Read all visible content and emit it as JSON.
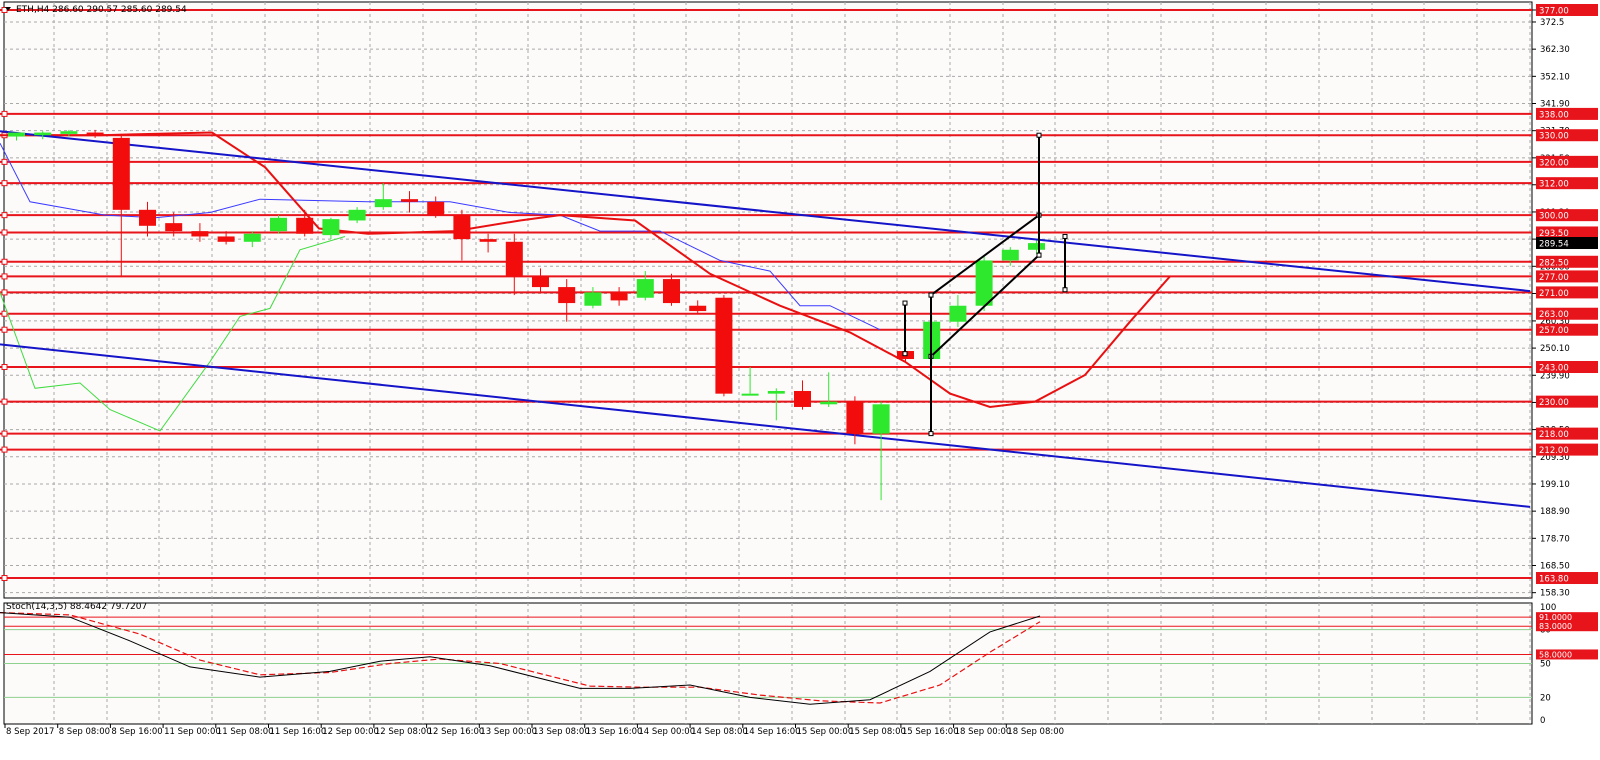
{
  "chart_data": {
    "type": "candlestick",
    "symbol_header": "ETH,H4  286.60 290.57 285.60 289.54",
    "last_price_label": "289.54",
    "colors": {
      "background": "#fdfafa",
      "grid": "#a9a9a9",
      "bull": "#2ee82e",
      "bear": "#f20c0c",
      "level": "#e8141b",
      "trend": "#1414c8",
      "channel": "#000000"
    },
    "price_axis_ticks": [
      "377.0",
      "372.5",
      "362.30",
      "352.10",
      "341.90",
      "331.70",
      "321.50",
      "311.40",
      "301.20",
      "291.00",
      "280.80",
      "270.60",
      "260.30",
      "250.10",
      "239.90",
      "229.70",
      "219.50",
      "209.30",
      "199.10",
      "188.90",
      "178.70",
      "168.50",
      "158.30"
    ],
    "ylim": [
      156.3,
      380.0
    ],
    "time_labels": [
      "8 Sep 2017",
      "8 Sep 08:00",
      "8 Sep 16:00",
      "11 Sep 00:00",
      "11 Sep 08:00",
      "11 Sep 16:00",
      "12 Sep 00:00",
      "12 Sep 08:00",
      "12 Sep 16:00",
      "13 Sep 00:00",
      "13 Sep 08:00",
      "13 Sep 16:00",
      "14 Sep 00:00",
      "14 Sep 08:00",
      "14 Sep 16:00",
      "15 Sep 00:00",
      "15 Sep 08:00",
      "15 Sep 16:00",
      "18 Sep 00:00",
      "18 Sep 08:00"
    ],
    "levels": [
      "377.00",
      "338.00",
      "330.00",
      "320.00",
      "312.00",
      "300.00",
      "293.50",
      "282.50",
      "277.00",
      "271.00",
      "263.00",
      "257.00",
      "243.00",
      "230.00",
      "218.00",
      "212.00",
      "163.80"
    ],
    "candles": [
      {
        "o": 329.5,
        "h": 331.0,
        "l": 328.0,
        "c": 331.0
      },
      {
        "o": 330.0,
        "h": 331.5,
        "l": 328.5,
        "c": 331.0
      },
      {
        "o": 330.5,
        "h": 332.0,
        "l": 329.5,
        "c": 331.5
      },
      {
        "o": 331.0,
        "h": 332.0,
        "l": 329.0,
        "c": 330.0
      },
      {
        "o": 329.0,
        "h": 330.5,
        "l": 277.0,
        "c": 302.0
      },
      {
        "o": 302.0,
        "h": 305.0,
        "l": 292.0,
        "c": 296.0
      },
      {
        "o": 297.0,
        "h": 301.0,
        "l": 292.0,
        "c": 294.0
      },
      {
        "o": 294.0,
        "h": 297.0,
        "l": 290.0,
        "c": 292.0
      },
      {
        "o": 292.0,
        "h": 294.0,
        "l": 289.0,
        "c": 290.0
      },
      {
        "o": 290.0,
        "h": 294.0,
        "l": 288.0,
        "c": 293.0
      },
      {
        "o": 294.0,
        "h": 300.0,
        "l": 293.0,
        "c": 299.0
      },
      {
        "o": 299.0,
        "h": 302.0,
        "l": 292.0,
        "c": 293.0
      },
      {
        "o": 292.5,
        "h": 299.0,
        "l": 291.0,
        "c": 298.5
      },
      {
        "o": 298.0,
        "h": 303.0,
        "l": 297.0,
        "c": 302.0
      },
      {
        "o": 303.0,
        "h": 312.0,
        "l": 302.0,
        "c": 306.0
      },
      {
        "o": 306.0,
        "h": 309.0,
        "l": 301.0,
        "c": 305.0
      },
      {
        "o": 305.0,
        "h": 307.0,
        "l": 299.0,
        "c": 300.0
      },
      {
        "o": 300.0,
        "h": 302.0,
        "l": 283.0,
        "c": 291.0
      },
      {
        "o": 291.0,
        "h": 293.0,
        "l": 286.0,
        "c": 290.0
      },
      {
        "o": 290.0,
        "h": 293.0,
        "l": 270.0,
        "c": 277.0
      },
      {
        "o": 277.0,
        "h": 280.0,
        "l": 271.0,
        "c": 273.0
      },
      {
        "o": 273.0,
        "h": 276.0,
        "l": 260.0,
        "c": 267.0
      },
      {
        "o": 266.0,
        "h": 273.0,
        "l": 265.0,
        "c": 271.0
      },
      {
        "o": 271.0,
        "h": 273.0,
        "l": 266.0,
        "c": 268.0
      },
      {
        "o": 269.0,
        "h": 279.0,
        "l": 268.0,
        "c": 276.0
      },
      {
        "o": 276.0,
        "h": 278.0,
        "l": 266.0,
        "c": 267.0
      },
      {
        "o": 266.0,
        "h": 268.0,
        "l": 263.0,
        "c": 264.0
      },
      {
        "o": 269.0,
        "h": 270.0,
        "l": 232.0,
        "c": 233.0
      },
      {
        "o": 233.0,
        "h": 243.0,
        "l": 233.0,
        "c": 233.0
      },
      {
        "o": 233.0,
        "h": 235.0,
        "l": 223.0,
        "c": 234.0
      },
      {
        "o": 234.0,
        "h": 238.0,
        "l": 227.0,
        "c": 228.0
      },
      {
        "o": 229.0,
        "h": 241.0,
        "l": 228.0,
        "c": 230.0
      },
      {
        "o": 230.0,
        "h": 232.0,
        "l": 214.0,
        "c": 218.0
      },
      {
        "o": 218.0,
        "h": 230.0,
        "l": 193.0,
        "c": 229.0
      },
      {
        "o": 249.0,
        "h": 264.0,
        "l": 245.0,
        "c": 246.0
      },
      {
        "o": 246.0,
        "h": 262.0,
        "l": 244.0,
        "c": 260.0
      },
      {
        "o": 260.0,
        "h": 270.0,
        "l": 258.0,
        "c": 266.0
      },
      {
        "o": 266.0,
        "h": 285.0,
        "l": 264.0,
        "c": 283.0
      },
      {
        "o": 283.0,
        "h": 288.0,
        "l": 281.0,
        "c": 287.0
      },
      {
        "o": 287.0,
        "h": 290.5,
        "l": 285.5,
        "c": 289.5
      }
    ],
    "trendlines": {
      "upper": [
        {
          "x": 0,
          "y": 331.5
        },
        {
          "x": 1530,
          "y": 271.5
        }
      ],
      "lower": [
        {
          "x": 0,
          "y": 251.5
        },
        {
          "x": 1530,
          "y": 190.5
        }
      ]
    },
    "ma_red": [
      {
        "x": 0,
        "y": 330
      },
      {
        "x": 100,
        "y": 330
      },
      {
        "x": 212,
        "y": 331
      },
      {
        "x": 265,
        "y": 318
      },
      {
        "x": 319,
        "y": 295
      },
      {
        "x": 368,
        "y": 293
      },
      {
        "x": 455,
        "y": 294
      },
      {
        "x": 520,
        "y": 298
      },
      {
        "x": 560,
        "y": 300
      },
      {
        "x": 635,
        "y": 298
      },
      {
        "x": 710,
        "y": 278
      },
      {
        "x": 780,
        "y": 266
      },
      {
        "x": 850,
        "y": 256
      },
      {
        "x": 905,
        "y": 245
      },
      {
        "x": 950,
        "y": 233
      },
      {
        "x": 990,
        "y": 228
      },
      {
        "x": 1035,
        "y": 230
      },
      {
        "x": 1085,
        "y": 240
      },
      {
        "x": 1130,
        "y": 260
      },
      {
        "x": 1170,
        "y": 277
      }
    ],
    "ma_blue": [
      {
        "x": 0,
        "y": 327
      },
      {
        "x": 30,
        "y": 305
      },
      {
        "x": 105,
        "y": 300
      },
      {
        "x": 155,
        "y": 299
      },
      {
        "x": 210,
        "y": 301
      },
      {
        "x": 260,
        "y": 306
      },
      {
        "x": 368,
        "y": 305
      },
      {
        "x": 450,
        "y": 305
      },
      {
        "x": 510,
        "y": 301
      },
      {
        "x": 560,
        "y": 300
      },
      {
        "x": 600,
        "y": 294
      },
      {
        "x": 660,
        "y": 294
      },
      {
        "x": 720,
        "y": 283
      },
      {
        "x": 770,
        "y": 279
      },
      {
        "x": 800,
        "y": 266
      },
      {
        "x": 830,
        "y": 266
      },
      {
        "x": 880,
        "y": 257
      }
    ],
    "ma_green": [
      {
        "x": 0,
        "y": 271
      },
      {
        "x": 35,
        "y": 235
      },
      {
        "x": 80,
        "y": 237
      },
      {
        "x": 110,
        "y": 227
      },
      {
        "x": 160,
        "y": 219
      },
      {
        "x": 210,
        "y": 245
      },
      {
        "x": 240,
        "y": 262
      },
      {
        "x": 270,
        "y": 265
      },
      {
        "x": 300,
        "y": 287
      },
      {
        "x": 345,
        "y": 292
      }
    ],
    "channel_segments": [
      [
        {
          "x": 931,
          "y": 270
        },
        {
          "x": 1039,
          "y": 300
        }
      ],
      [
        {
          "x": 931,
          "y": 247
        },
        {
          "x": 1039,
          "y": 285
        }
      ],
      [
        {
          "x": 931,
          "y": 270
        },
        {
          "x": 931,
          "y": 218
        }
      ],
      [
        {
          "x": 1039,
          "y": 330
        },
        {
          "x": 1039,
          "y": 285
        }
      ],
      [
        {
          "x": 905,
          "y": 267
        },
        {
          "x": 905,
          "y": 248
        }
      ],
      [
        {
          "x": 1065,
          "y": 292
        },
        {
          "x": 1065,
          "y": 272
        }
      ]
    ],
    "stochastic": {
      "header": "Stoch(14,3,5) 88.4642 79.7207",
      "ylim": [
        0,
        100
      ],
      "ticks": [
        "100",
        "80",
        "50",
        "20",
        "0"
      ],
      "levels": [
        "91.0000",
        "83.0000",
        "58.0000"
      ],
      "k": [
        {
          "x": 0,
          "y": 95
        },
        {
          "x": 70,
          "y": 91
        },
        {
          "x": 130,
          "y": 70
        },
        {
          "x": 190,
          "y": 47
        },
        {
          "x": 260,
          "y": 38
        },
        {
          "x": 330,
          "y": 43
        },
        {
          "x": 380,
          "y": 52
        },
        {
          "x": 430,
          "y": 56
        },
        {
          "x": 490,
          "y": 48
        },
        {
          "x": 580,
          "y": 28
        },
        {
          "x": 630,
          "y": 28
        },
        {
          "x": 690,
          "y": 31
        },
        {
          "x": 750,
          "y": 20
        },
        {
          "x": 810,
          "y": 14
        },
        {
          "x": 870,
          "y": 18
        },
        {
          "x": 930,
          "y": 43
        },
        {
          "x": 990,
          "y": 78
        },
        {
          "x": 1040,
          "y": 92
        }
      ],
      "d": [
        {
          "x": 0,
          "y": 95
        },
        {
          "x": 70,
          "y": 93
        },
        {
          "x": 140,
          "y": 76
        },
        {
          "x": 200,
          "y": 53
        },
        {
          "x": 260,
          "y": 40
        },
        {
          "x": 330,
          "y": 42
        },
        {
          "x": 390,
          "y": 50
        },
        {
          "x": 440,
          "y": 54
        },
        {
          "x": 500,
          "y": 50
        },
        {
          "x": 590,
          "y": 30
        },
        {
          "x": 640,
          "y": 29
        },
        {
          "x": 700,
          "y": 29
        },
        {
          "x": 760,
          "y": 22
        },
        {
          "x": 820,
          "y": 17
        },
        {
          "x": 880,
          "y": 15
        },
        {
          "x": 940,
          "y": 31
        },
        {
          "x": 990,
          "y": 60
        },
        {
          "x": 1040,
          "y": 87
        }
      ]
    }
  }
}
